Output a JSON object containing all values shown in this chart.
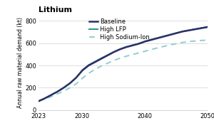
{
  "title": "Lithium",
  "ylabel": "Annual raw material demand (kt)",
  "xlim": [
    2023,
    2050
  ],
  "ylim": [
    0,
    850
  ],
  "yticks": [
    0,
    200,
    400,
    600,
    800
  ],
  "xticks": [
    2023,
    2030,
    2040,
    2050
  ],
  "years": [
    2023,
    2024,
    2025,
    2026,
    2027,
    2028,
    2029,
    2030,
    2031,
    2032,
    2033,
    2034,
    2035,
    2036,
    2037,
    2038,
    2039,
    2040,
    2041,
    2042,
    2043,
    2044,
    2045,
    2046,
    2047,
    2048,
    2049,
    2050
  ],
  "baseline": [
    80,
    105,
    135,
    165,
    200,
    240,
    290,
    355,
    400,
    430,
    460,
    490,
    520,
    545,
    565,
    580,
    595,
    615,
    630,
    645,
    660,
    675,
    690,
    705,
    715,
    725,
    735,
    745
  ],
  "high_lfp": [
    80,
    105,
    135,
    165,
    200,
    240,
    290,
    360,
    405,
    435,
    465,
    493,
    522,
    547,
    567,
    582,
    597,
    618,
    634,
    648,
    662,
    677,
    692,
    706,
    717,
    727,
    737,
    748
  ],
  "high_sodium": [
    80,
    100,
    120,
    145,
    170,
    200,
    235,
    285,
    330,
    365,
    395,
    420,
    445,
    465,
    483,
    498,
    513,
    528,
    543,
    558,
    572,
    585,
    596,
    607,
    615,
    620,
    625,
    628
  ],
  "color_baseline": "#2d3068",
  "color_lfp": "#2a9090",
  "color_sodium": "#8ecfcf",
  "background_color": "#ffffff",
  "grid_color": "#d0d0d0",
  "title_fontsize": 8,
  "label_fontsize": 5.5,
  "tick_fontsize": 6,
  "legend_fontsize": 6
}
